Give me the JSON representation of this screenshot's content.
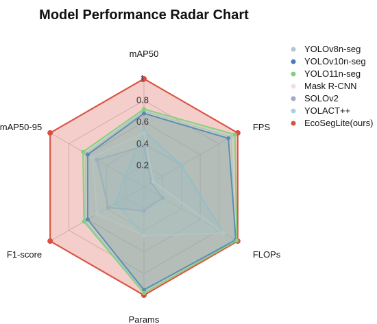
{
  "chart_data": {
    "type": "radar",
    "title": "Model Performance Radar Chart",
    "axes": [
      "mAP50",
      "FPS",
      "FLOPs",
      "Params",
      "F1-score",
      "mAP50-95"
    ],
    "rlim": [
      0,
      1
    ],
    "ticks": [
      "0.2",
      "0.4",
      "0.6",
      "0.8",
      "1"
    ],
    "tick_values": [
      0.2,
      0.4,
      0.6,
      0.8,
      1.0
    ],
    "grid": true,
    "legend_position": "top-right",
    "series": [
      {
        "name": "YOLOv8n-seg",
        "color": "#b6c4d8",
        "values": [
          0.7,
          0.93,
          0.97,
          0.96,
          0.63,
          0.62
        ]
      },
      {
        "name": "YOLOv10n-seg",
        "color": "#4c78c0",
        "values": [
          0.68,
          0.9,
          0.98,
          0.95,
          0.6,
          0.6
        ]
      },
      {
        "name": "YOLO11n-seg",
        "color": "#7fd17f",
        "values": [
          0.72,
          0.97,
          0.99,
          0.98,
          0.64,
          0.65
        ]
      },
      {
        "name": "Mask R-CNN",
        "color": "#f4dede",
        "values": [
          0.5,
          0.1,
          0.85,
          0.45,
          0.5,
          0.55
        ]
      },
      {
        "name": "SOLOv2",
        "color": "#a4a6cc",
        "values": [
          0.38,
          0.08,
          0.2,
          0.22,
          0.38,
          0.5
        ]
      },
      {
        "name": "YOLACT++",
        "color": "#a8d0e8",
        "values": [
          0.52,
          0.4,
          0.85,
          0.45,
          0.3,
          0.2
        ]
      },
      {
        "name": "EcoSegLite(ours)",
        "color": "#d95040",
        "values": [
          1.0,
          1.0,
          1.0,
          1.0,
          1.0,
          1.0
        ]
      }
    ]
  }
}
